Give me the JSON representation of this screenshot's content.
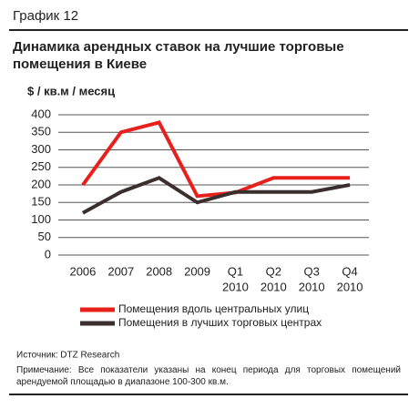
{
  "header": "График 12",
  "chart_data": {
    "type": "line",
    "title": [
      "Динамика арендных ставок на лучшие торговые",
      "помещения в Киеве"
    ],
    "y_label": "$ / кв.м / месяц",
    "categories": [
      "2006",
      "2007",
      "2008",
      "2009",
      [
        "Q1",
        "2010"
      ],
      [
        "Q2",
        "2010"
      ],
      [
        "Q3",
        "2010"
      ],
      [
        "Q4",
        "2010"
      ]
    ],
    "series": [
      {
        "name": "Помещения вдоль центральных улиц",
        "color": "#e8201c",
        "values": [
          200,
          350,
          378,
          168,
          178,
          220,
          220,
          220
        ]
      },
      {
        "name": "Помещения в лучших торговых центрах",
        "color": "#3a2f2c",
        "values": [
          120,
          180,
          220,
          150,
          180,
          180,
          180,
          200
        ]
      }
    ],
    "ylim": [
      0,
      400
    ],
    "yticks": [
      0,
      50,
      100,
      150,
      200,
      250,
      300,
      350,
      400
    ],
    "grid": true
  },
  "source": "Источник: DTZ Research",
  "note": "Примечание: Все показатели указаны на конец периода для торговых помещений арендуемой площадью в диапазоне 100-300 кв.м."
}
